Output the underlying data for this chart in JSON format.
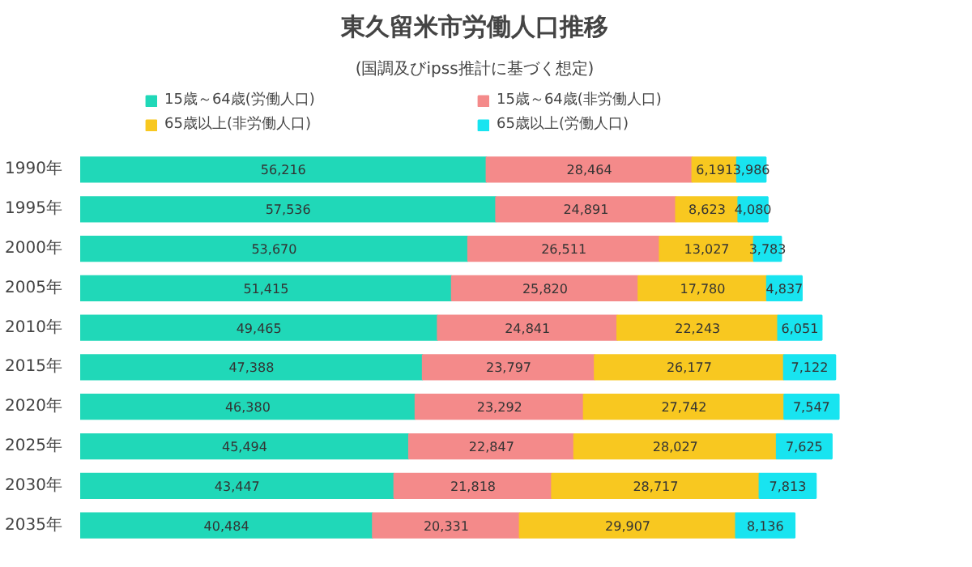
{
  "chart_data": {
    "type": "bar",
    "orientation": "horizontal",
    "stacked": true,
    "title": "東久留米市労働人口推移",
    "subtitle": "(国調及びipss推計に基づく想定)",
    "categories": [
      "1990年",
      "1995年",
      "2000年",
      "2005年",
      "2010年",
      "2015年",
      "2020年",
      "2025年",
      "2030年",
      "2035年"
    ],
    "series": [
      {
        "name": "15歳～64歳(労働人口)",
        "color": "#20d8b8",
        "values": [
          56216,
          57536,
          53670,
          51415,
          49465,
          47388,
          46380,
          45494,
          43447,
          40484
        ],
        "value_labels": [
          "56,216",
          "57,536",
          "53,670",
          "51,415",
          "49,465",
          "47,388",
          "46,380",
          "45,494",
          "43,447",
          "40,484"
        ]
      },
      {
        "name": "15歳～64歳(非労働人口)",
        "color": "#f48a8a",
        "values": [
          28464,
          24891,
          26511,
          25820,
          24841,
          23797,
          23292,
          22847,
          21818,
          20331
        ],
        "value_labels": [
          "28,464",
          "24,891",
          "26,511",
          "25,820",
          "24,841",
          "23,797",
          "23,292",
          "22,847",
          "21,818",
          "20,331"
        ]
      },
      {
        "name": "65歳以上(非労働人口)",
        "color": "#f8c820",
        "values": [
          6191,
          8623,
          13027,
          17780,
          22243,
          26177,
          27742,
          28027,
          28717,
          29907
        ],
        "value_labels": [
          "6,191",
          "8,623",
          "13,027",
          "17,780",
          "22,243",
          "26,177",
          "27,742",
          "28,027",
          "28,717",
          "29,907"
        ]
      },
      {
        "name": "65歳以上(労働人口)",
        "color": "#18e4f0",
        "values": [
          3986,
          4080,
          3783,
          4837,
          6051,
          7122,
          7547,
          7625,
          7813,
          8136
        ],
        "value_labels": [
          "3,986",
          "4,080",
          "3,783",
          "4,837",
          "6,051",
          "7,122",
          "7,547",
          "7,625",
          "7,813",
          "8,136"
        ]
      }
    ],
    "legend": "top",
    "tick_labels": "y",
    "grid": false
  }
}
